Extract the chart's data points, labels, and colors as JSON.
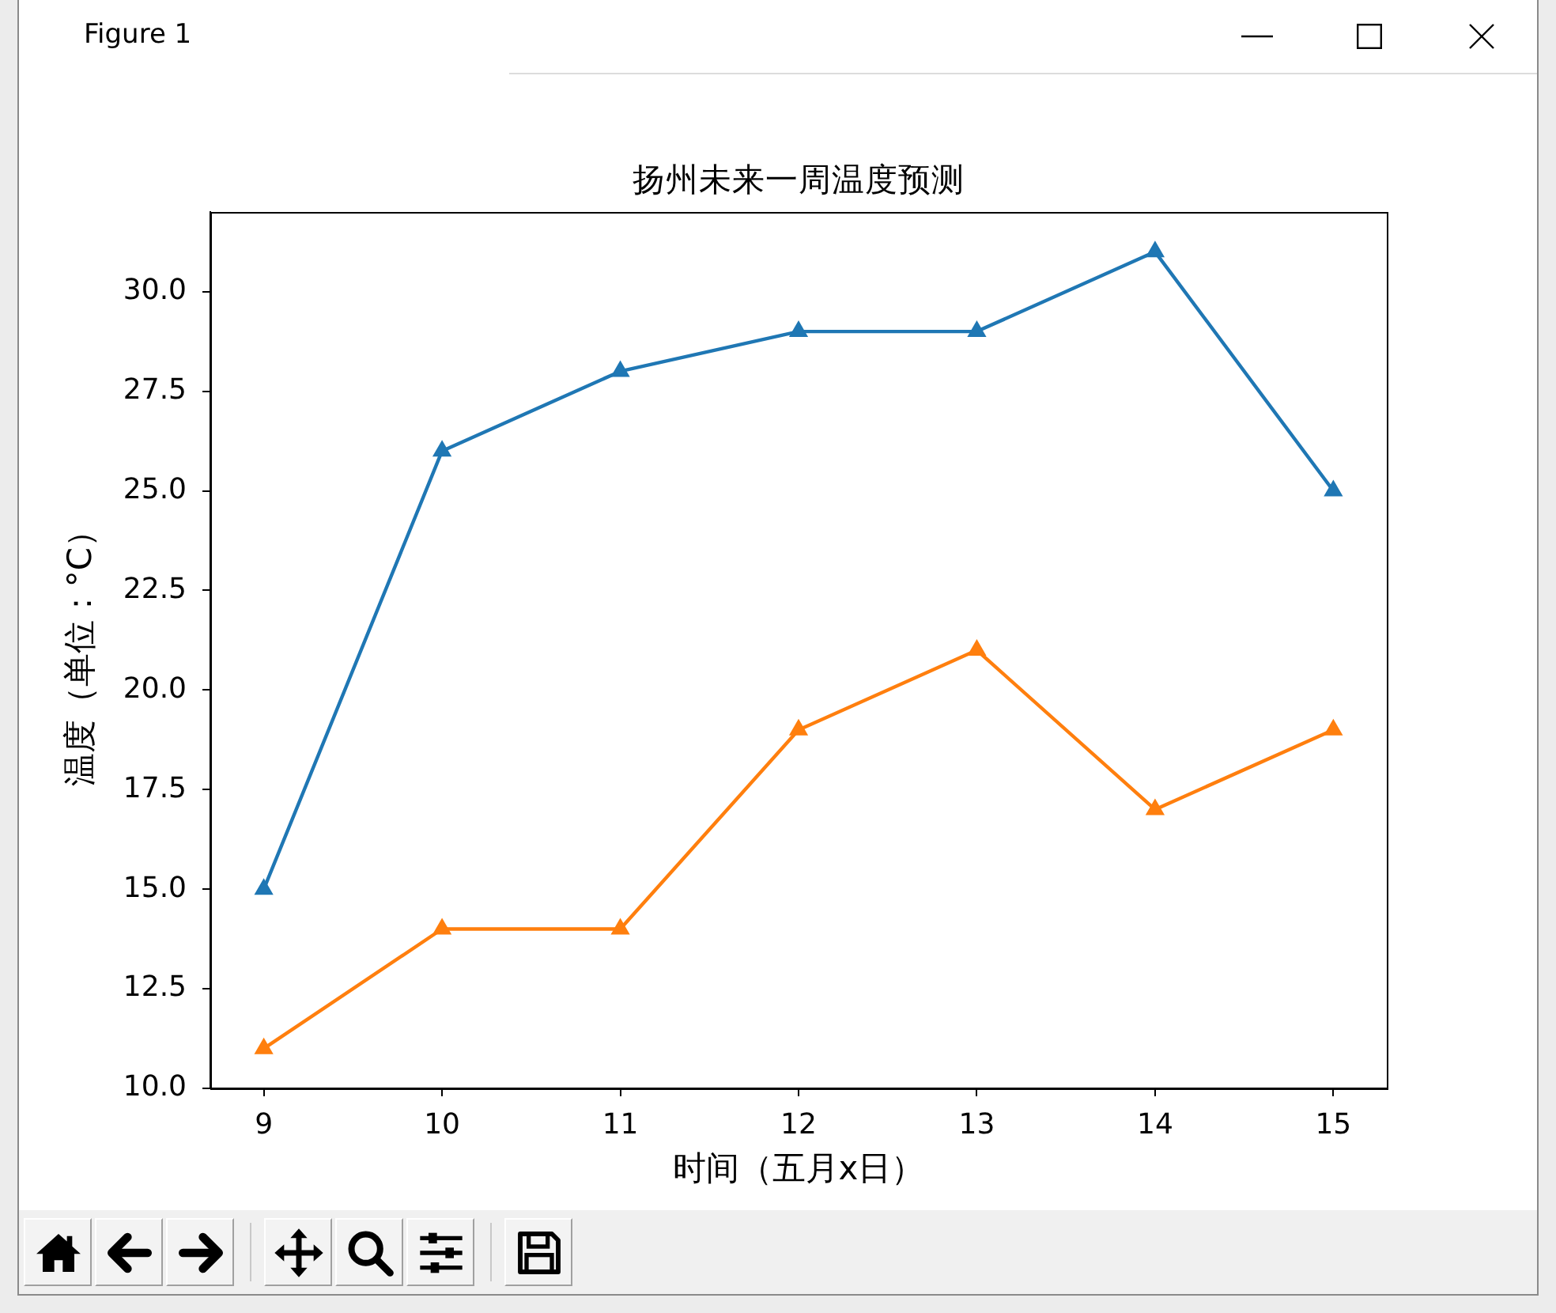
{
  "chart_data": {
    "type": "line",
    "title": "扬州未来一周温度预测",
    "xlabel": "时间（五月x日）",
    "ylabel": "温度（单位：°C）",
    "annotations": [
      "Figure 1"
    ],
    "x": [
      9,
      10,
      11,
      12,
      13,
      14,
      15
    ],
    "series": [
      {
        "color": "#1f77b4",
        "values": [
          15,
          26,
          28,
          29,
          29,
          31,
          25
        ]
      },
      {
        "color": "#ff7f0e",
        "values": [
          11,
          14,
          14,
          19,
          21,
          17,
          19
        ]
      }
    ],
    "xlim": [
      8.7,
      15.3
    ],
    "xticks": [
      9,
      10,
      11,
      12,
      13,
      14,
      15
    ],
    "ylim": [
      10,
      32
    ],
    "yticks": [
      {
        "value": 10,
        "label": "10.0"
      },
      12.5,
      {
        "value": 15,
        "label": "15.0"
      },
      17.5,
      {
        "value": 20,
        "label": "20.0"
      },
      22.5,
      {
        "value": 25,
        "label": "25.0"
      },
      27.5,
      {
        "value": 30,
        "label": "30.0"
      }
    ],
    "marker": "triangle",
    "line_style": "solid"
  }
}
